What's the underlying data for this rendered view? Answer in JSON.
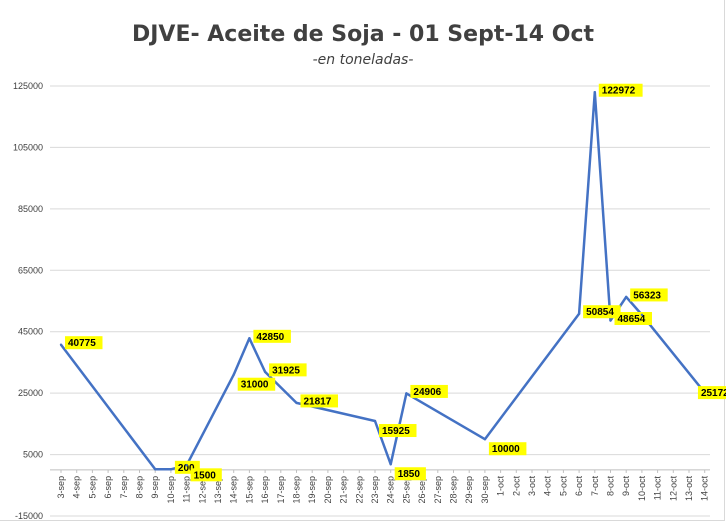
{
  "colors": {
    "line": "#4472c4",
    "label_bg": "#ffff00",
    "grid": "#d9d9d9",
    "text": "#404040"
  },
  "chart_data": {
    "type": "line",
    "title": "DJVE- Aceite de Soja - 01 Sept-14 Oct",
    "subtitle": "-en toneladas-",
    "xlabel": "",
    "ylabel": "",
    "ylim": [
      -15000,
      125000
    ],
    "yticks": [
      "-15000",
      "5000",
      "25000",
      "45000",
      "65000",
      "85000",
      "105000",
      "125000"
    ],
    "ytick_values": [
      -15000,
      5000,
      25000,
      45000,
      65000,
      85000,
      105000,
      125000
    ],
    "grid": true,
    "legend": "none",
    "categories": [
      "3-sep",
      "4-sep",
      "5-sep",
      "6-sep",
      "7-sep",
      "8-sep",
      "9-sep",
      "10-sep",
      "11-sep",
      "12-sep",
      "13-sep",
      "14-sep",
      "15-sep",
      "16-sep",
      "17-sep",
      "18-sep",
      "19-sep",
      "20-sep",
      "21-sep",
      "22-sep",
      "23-sep",
      "24-sep",
      "25-sep",
      "26-sep",
      "27-sep",
      "28-sep",
      "29-sep",
      "30-sep",
      "1-oct",
      "2-oct",
      "3-oct",
      "4-oct",
      "5-oct",
      "6-oct",
      "7-oct",
      "8-oct",
      "9-oct",
      "10-oct",
      "11-oct",
      "12-oct",
      "13-oct",
      "14-oct"
    ],
    "points": [
      {
        "x": "3-sep",
        "y": 40775,
        "label": "40775",
        "anchor": "right"
      },
      {
        "x": "9-sep",
        "y": 200,
        "label": null,
        "anchor": "none"
      },
      {
        "x": "10-sep",
        "y": 200,
        "label": "200",
        "anchor": "right"
      },
      {
        "x": "11-sep",
        "y": 1500,
        "label": "1500",
        "anchor": "below-right"
      },
      {
        "x": "14-sep",
        "y": 31000,
        "label": "31000",
        "anchor": "below-right"
      },
      {
        "x": "15-sep",
        "y": 42850,
        "label": "42850",
        "anchor": "right"
      },
      {
        "x": "16-sep",
        "y": 31925,
        "label": "31925",
        "anchor": "right"
      },
      {
        "x": "18-sep",
        "y": 21817,
        "label": "21817",
        "anchor": "right"
      },
      {
        "x": "23-sep",
        "y": 15925,
        "label": "15925",
        "anchor": "below-right"
      },
      {
        "x": "24-sep",
        "y": 1850,
        "label": "1850",
        "anchor": "below-right"
      },
      {
        "x": "25-sep",
        "y": 24906,
        "label": "24906",
        "anchor": "right"
      },
      {
        "x": "30-sep",
        "y": 10000,
        "label": "10000",
        "anchor": "below-right"
      },
      {
        "x": "6-oct",
        "y": 50854,
        "label": "50854",
        "anchor": "right"
      },
      {
        "x": "7-oct",
        "y": 122972,
        "label": "122972",
        "anchor": "right"
      },
      {
        "x": "8-oct",
        "y": 48654,
        "label": "48654",
        "anchor": "right"
      },
      {
        "x": "9-oct",
        "y": 56323,
        "label": "56323",
        "anchor": "right"
      },
      {
        "x": "10-oct",
        "y": 50500,
        "label": null,
        "anchor": "none"
      },
      {
        "x": "14-oct",
        "y": 25172,
        "label": "25172",
        "anchor": "center"
      }
    ]
  }
}
